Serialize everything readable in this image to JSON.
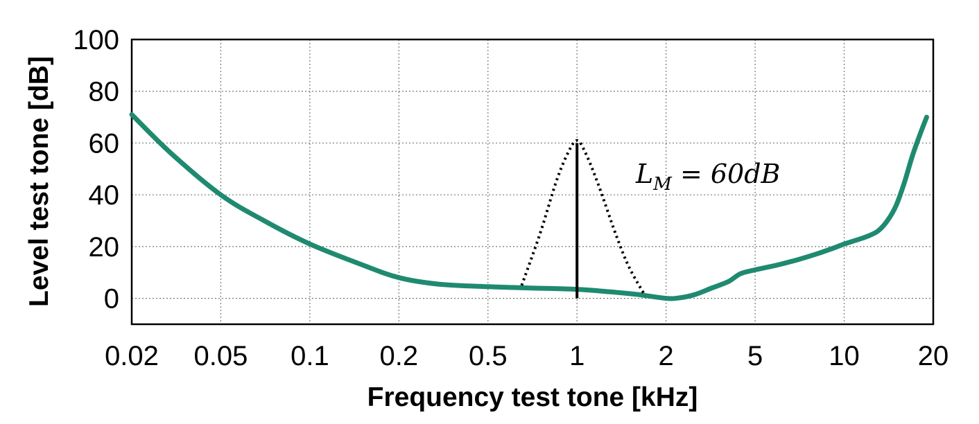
{
  "chart_data": {
    "type": "line",
    "xlabel": "Frequency test tone [kHz]",
    "ylabel": "Level test tone [dB]",
    "x_scale": "log",
    "x_ticks": [
      "0.02",
      "0.05",
      "0.1",
      "0.2",
      "0.5",
      "1",
      "2",
      "5",
      "10",
      "20"
    ],
    "x_tick_order": [
      0.02,
      0.05,
      0.1,
      0.2,
      0.5,
      1,
      2,
      5,
      10,
      20
    ],
    "y_ticks": [
      "0",
      "20",
      "40",
      "60",
      "80",
      "100"
    ],
    "y_tick_values": [
      0,
      20,
      40,
      60,
      80,
      100
    ],
    "xlim": [
      0.02,
      20
    ],
    "ylim": [
      -10,
      100
    ],
    "grid": true,
    "colors": {
      "threshold": "#1f8a70",
      "masker": "#000000",
      "grid": "#777777"
    },
    "series": [
      {
        "x": [
          0.02,
          0.03,
          0.05,
          0.07,
          0.1,
          0.15,
          0.2,
          0.3,
          0.5,
          0.7,
          1,
          1.3,
          1.6,
          2,
          2.3,
          2.7,
          3.2,
          3.8,
          4.3,
          5,
          6,
          7,
          8,
          9,
          10,
          11,
          12,
          13,
          14,
          15,
          16,
          17,
          18,
          19
        ],
        "y": [
          71,
          56,
          40,
          30,
          21,
          13,
          8,
          5.5,
          4.5,
          4,
          3.5,
          2.5,
          1.5,
          0,
          0.2,
          1.5,
          4,
          6.5,
          9.5,
          11,
          13,
          15,
          17,
          19,
          21,
          22.5,
          24,
          26,
          30,
          36,
          45,
          55,
          63,
          70
        ]
      },
      {
        "x": [
          0.65,
          0.75,
          0.85,
          0.93,
          1,
          1.07,
          1.18,
          1.35,
          1.5,
          1.7
        ],
        "y": [
          5,
          25,
          45,
          56,
          61,
          56,
          44,
          25,
          12,
          1
        ]
      }
    ],
    "masker": {
      "x": 1,
      "y_from": 0,
      "y_to": 60
    },
    "annotation": {
      "base": "L",
      "subscript": "M",
      "rest": " = 60dB"
    }
  }
}
